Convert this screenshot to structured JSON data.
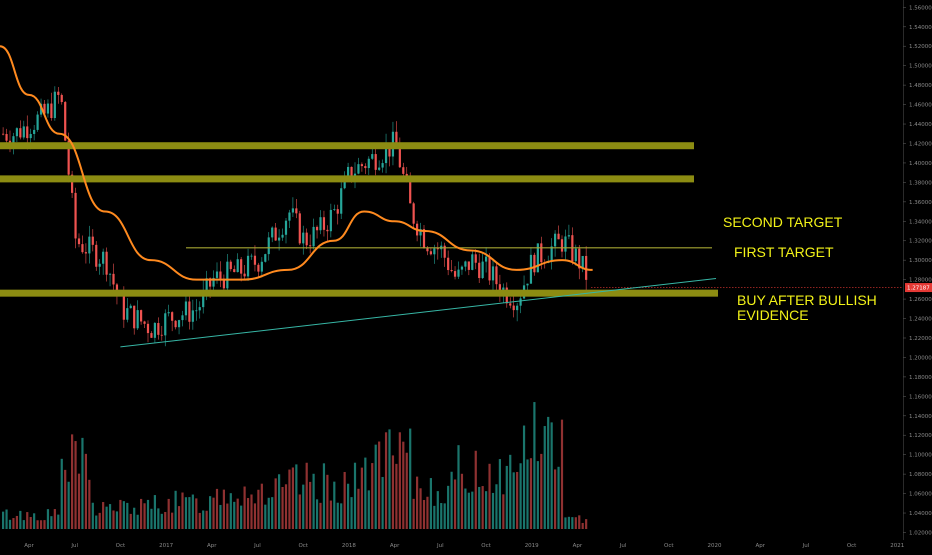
{
  "chart_data": {
    "type": "candlestick",
    "title": "",
    "colors": {
      "background": "#000000",
      "up": "#26a69a",
      "down": "#ef5350",
      "ma": "#ff8a1f",
      "zone": "#8c8c12",
      "thin_line": "#a6a632",
      "trendline": "#37b7a6",
      "price_tag": "#e53935",
      "annotation": "#f2f218"
    },
    "y_axis": {
      "ylim": [
        1.0133,
        1.5624
      ],
      "ticks": [
        "1.56000",
        "1.54000",
        "1.52000",
        "1.50000",
        "1.48000",
        "1.46000",
        "1.44000",
        "1.42000",
        "1.40000",
        "1.38000",
        "1.36000",
        "1.34000",
        "1.32000",
        "1.30000",
        "1.28000",
        "1.26000",
        "1.24000",
        "1.22000",
        "1.20000",
        "1.18000",
        "1.16000",
        "1.14000",
        "1.12000",
        "1.10000",
        "1.08000",
        "1.06000",
        "1.04000",
        "1.02000"
      ],
      "current_price": "1.27187"
    },
    "x_axis": {
      "ticks": [
        "Apr",
        "Jul",
        "Oct",
        "2017",
        "Apr",
        "Jul",
        "Oct",
        "2018",
        "Apr",
        "Jul",
        "Oct",
        "2019",
        "Apr",
        "Jul",
        "Oct",
        "2020",
        "Apr",
        "Jul",
        "Oct",
        "2021"
      ]
    },
    "price_series": {
      "key_points": [
        {
          "date": "2016-03",
          "price": 1.43
        },
        {
          "date": "2016-05",
          "price": 1.45
        },
        {
          "date": "2016-06",
          "price": 1.47
        },
        {
          "date": "2016-07",
          "price": 1.32
        },
        {
          "date": "2016-08",
          "price": 1.31
        },
        {
          "date": "2016-09",
          "price": 1.3
        },
        {
          "date": "2016-10",
          "price": 1.25
        },
        {
          "date": "2016-11",
          "price": 1.24
        },
        {
          "date": "2016-12",
          "price": 1.23
        },
        {
          "date": "2017-01",
          "price": 1.24
        },
        {
          "date": "2017-03",
          "price": 1.25
        },
        {
          "date": "2017-04",
          "price": 1.28
        },
        {
          "date": "2017-06",
          "price": 1.29
        },
        {
          "date": "2017-07",
          "price": 1.3
        },
        {
          "date": "2017-09",
          "price": 1.35
        },
        {
          "date": "2017-10",
          "price": 1.32
        },
        {
          "date": "2017-11",
          "price": 1.33
        },
        {
          "date": "2017-12",
          "price": 1.35
        },
        {
          "date": "2018-01",
          "price": 1.39
        },
        {
          "date": "2018-02",
          "price": 1.4
        },
        {
          "date": "2018-04",
          "price": 1.42
        },
        {
          "date": "2018-05",
          "price": 1.35
        },
        {
          "date": "2018-06",
          "price": 1.32
        },
        {
          "date": "2018-07",
          "price": 1.31
        },
        {
          "date": "2018-08",
          "price": 1.28
        },
        {
          "date": "2018-09",
          "price": 1.3
        },
        {
          "date": "2018-10",
          "price": 1.29
        },
        {
          "date": "2018-11",
          "price": 1.27
        },
        {
          "date": "2018-12",
          "price": 1.26
        },
        {
          "date": "2019-01",
          "price": 1.3
        },
        {
          "date": "2019-02",
          "price": 1.31
        },
        {
          "date": "2019-03",
          "price": 1.32
        },
        {
          "date": "2019-04",
          "price": 1.3
        },
        {
          "date": "2019-05",
          "price": 1.27
        }
      ]
    },
    "moving_average": [
      {
        "date": "2016-01",
        "price": 1.52
      },
      {
        "date": "2016-04",
        "price": 1.47
      },
      {
        "date": "2016-06",
        "price": 1.43
      },
      {
        "date": "2016-09",
        "price": 1.35
      },
      {
        "date": "2016-12",
        "price": 1.3
      },
      {
        "date": "2017-03",
        "price": 1.28
      },
      {
        "date": "2017-06",
        "price": 1.28
      },
      {
        "date": "2017-09",
        "price": 1.29
      },
      {
        "date": "2017-12",
        "price": 1.32
      },
      {
        "date": "2018-02",
        "price": 1.35
      },
      {
        "date": "2018-04",
        "price": 1.34
      },
      {
        "date": "2018-06",
        "price": 1.33
      },
      {
        "date": "2018-09",
        "price": 1.31
      },
      {
        "date": "2018-12",
        "price": 1.29
      },
      {
        "date": "2019-03",
        "price": 1.3
      },
      {
        "date": "2019-05",
        "price": 1.29
      }
    ],
    "levels": [
      {
        "price": 1.4177,
        "style": "zone"
      },
      {
        "price": 1.3836,
        "style": "zone"
      },
      {
        "price": 1.3127,
        "style": "thin"
      },
      {
        "price": 1.2661,
        "style": "zone"
      }
    ],
    "trendline": [
      {
        "date": "2016-10",
        "price": 1.2108
      },
      {
        "date": "2020-05",
        "price": 1.2812
      }
    ],
    "volume": {
      "range": [
        0,
        1
      ],
      "segments": [
        {
          "from": "2016-01",
          "to": "2016-06",
          "level": 0.12
        },
        {
          "from": "2016-06",
          "to": "2016-08",
          "level": 0.55
        },
        {
          "from": "2016-08",
          "to": "2016-12",
          "level": 0.18
        },
        {
          "from": "2016-12",
          "to": "2017-04",
          "level": 0.22
        },
        {
          "from": "2017-04",
          "to": "2017-09",
          "level": 0.32
        },
        {
          "from": "2017-09",
          "to": "2018-02",
          "level": 0.38
        },
        {
          "from": "2018-02",
          "to": "2018-05",
          "level": 0.58
        },
        {
          "from": "2018-05",
          "to": "2018-08",
          "level": 0.35
        },
        {
          "from": "2018-08",
          "to": "2018-12",
          "level": 0.48
        },
        {
          "from": "2018-12",
          "to": "2019-03",
          "level": 0.75
        },
        {
          "from": "2019-03",
          "to": "2019-05",
          "level": 0.08
        }
      ]
    },
    "annotations": [
      {
        "text": "SECOND TARGET"
      },
      {
        "text": "FIRST TARGET"
      },
      {
        "text": "BUY AFTER BULLISH"
      },
      {
        "text": "EVIDENCE"
      }
    ]
  }
}
